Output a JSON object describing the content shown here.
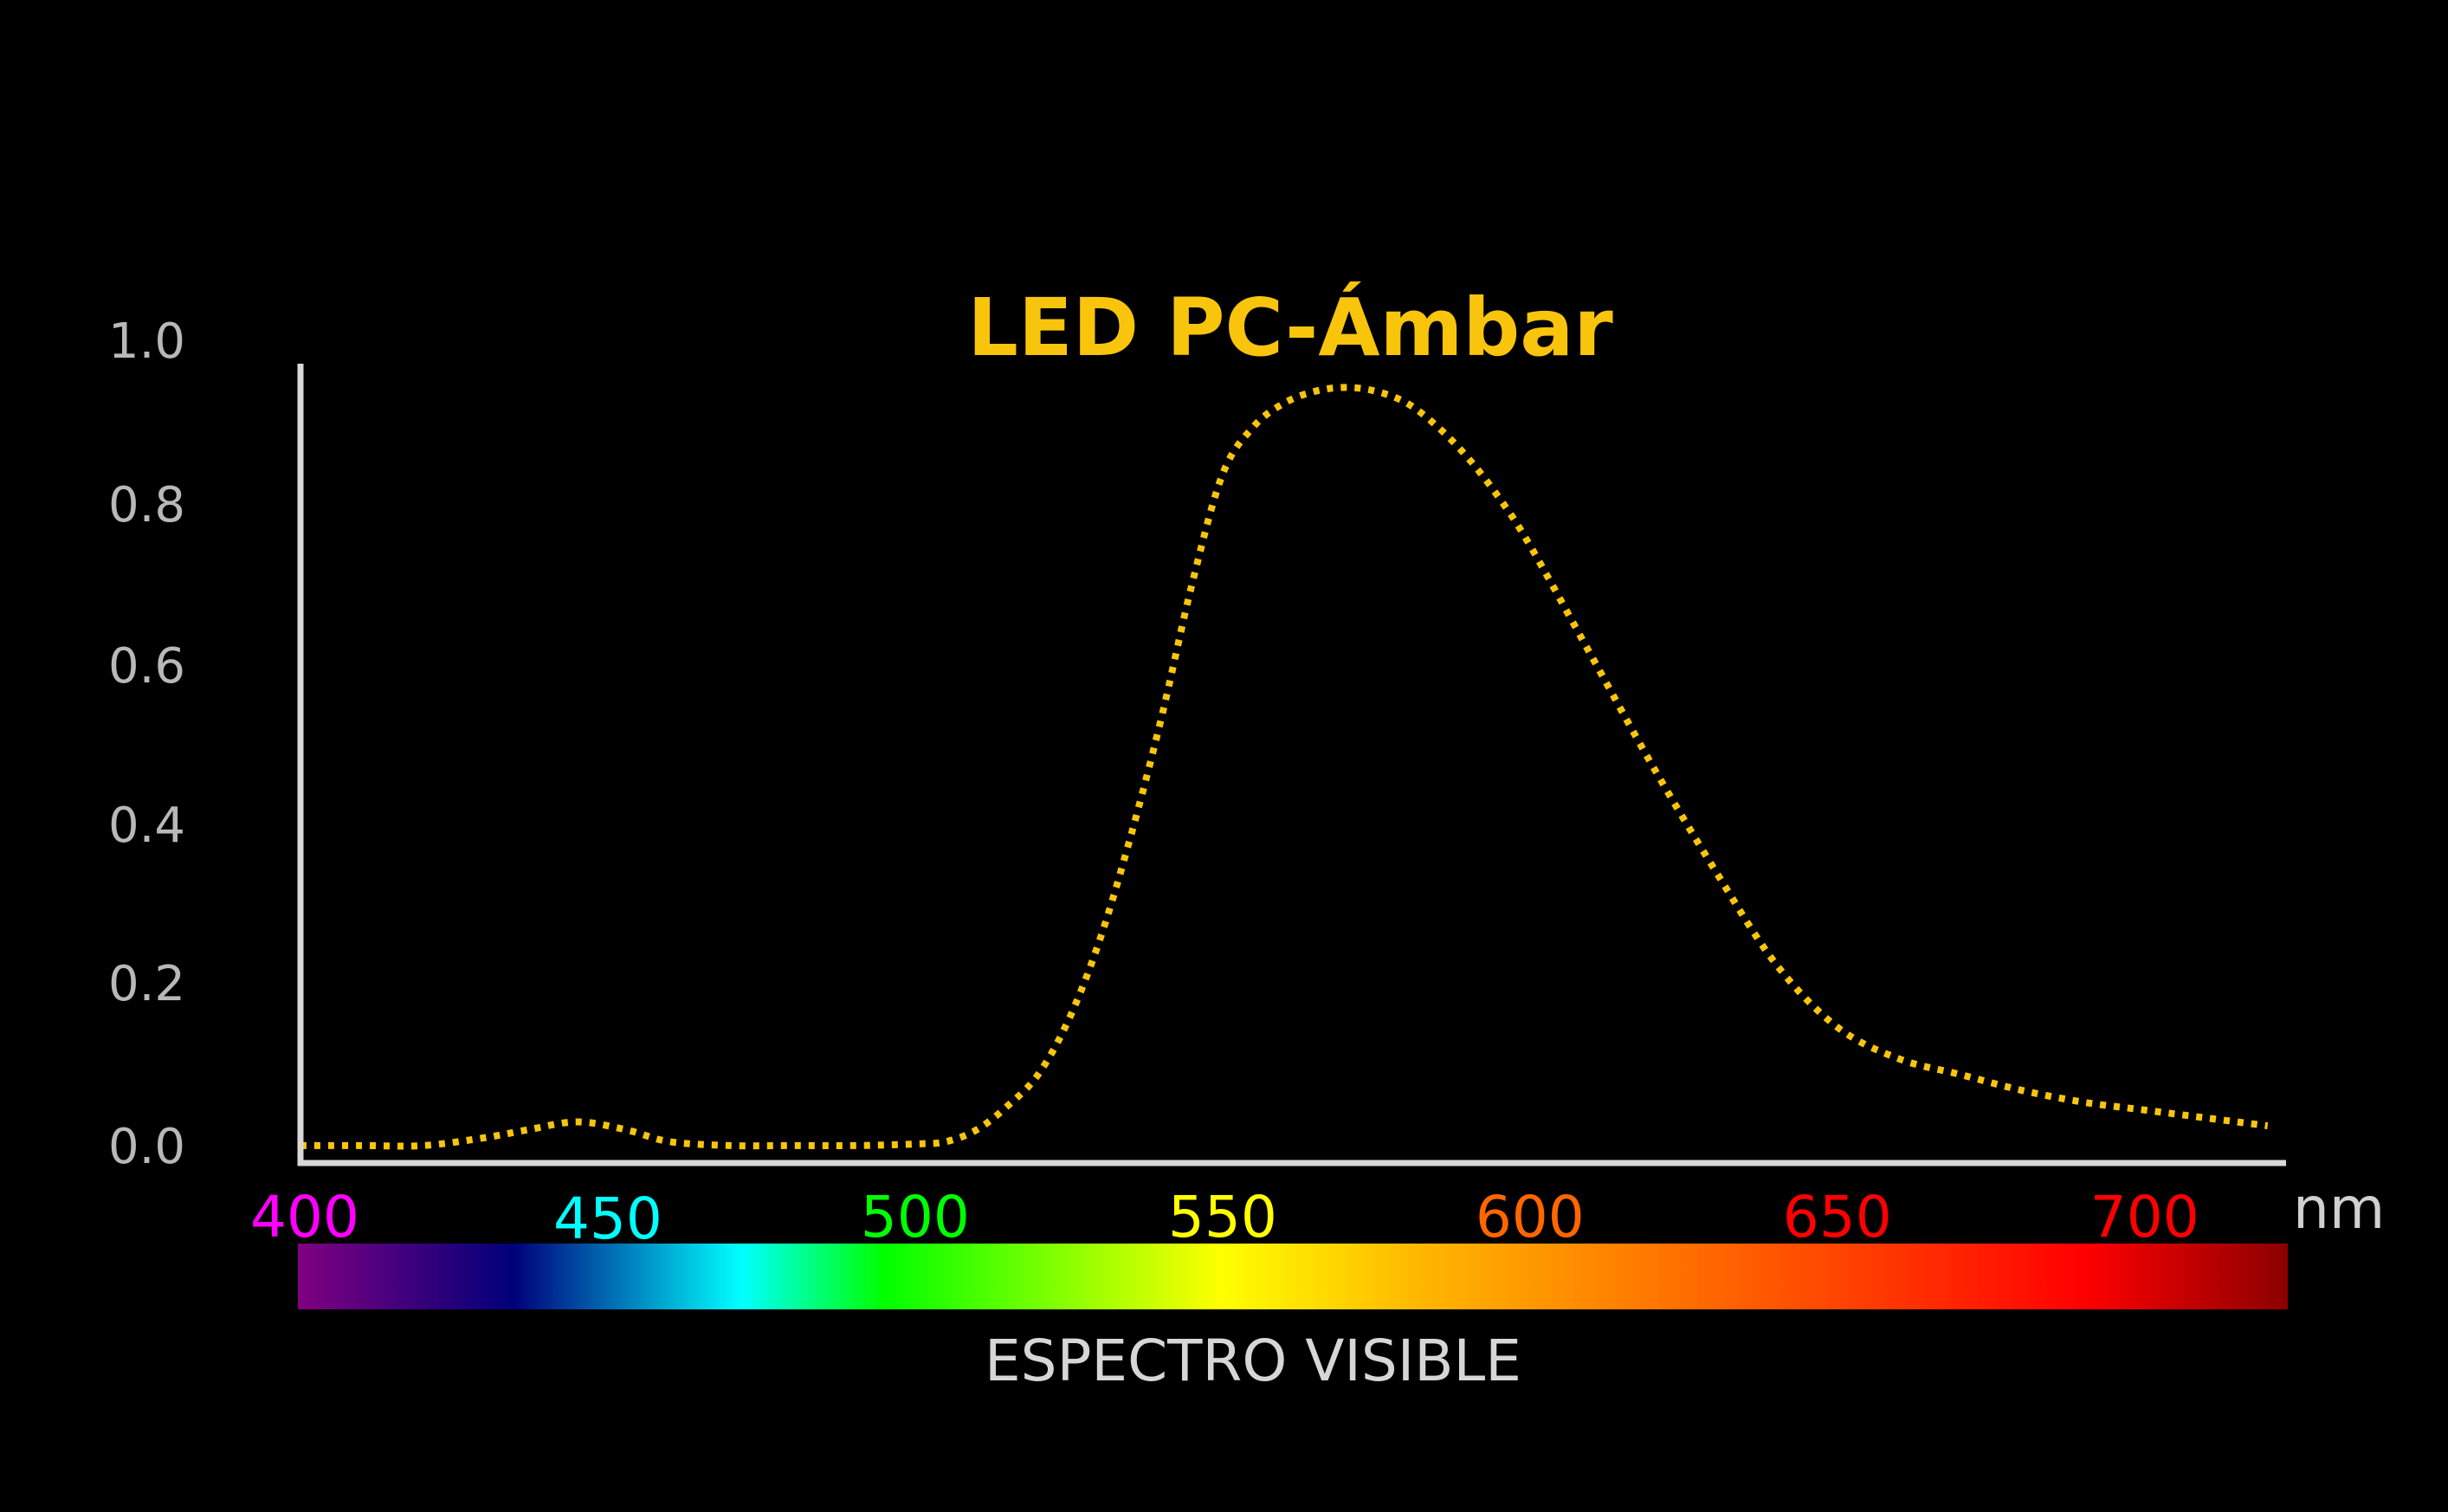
{
  "chart_data": {
    "type": "line",
    "title": "LED PC-Ámbar",
    "x_unit": "nm",
    "xlim": [
      400,
      723
    ],
    "ylim": [
      0,
      1.0
    ],
    "y_ticks": [
      "0.0",
      "0.2",
      "0.4",
      "0.6",
      "0.8",
      "1.0"
    ],
    "x_ticks": [
      {
        "label": "400",
        "value": 400,
        "color": "#ff00ff"
      },
      {
        "label": "450",
        "value": 450,
        "color": "#00ffff"
      },
      {
        "label": "500",
        "value": 500,
        "color": "#00ff00"
      },
      {
        "label": "550",
        "value": 550,
        "color": "#ffff00"
      },
      {
        "label": "600",
        "value": 600,
        "color": "#ff6600"
      },
      {
        "label": "650",
        "value": 650,
        "color": "#ff0000"
      },
      {
        "label": "700",
        "value": 700,
        "color": "#ff0000"
      }
    ],
    "series": [
      {
        "color": "#f8c50c",
        "style": "dotted",
        "x": [
          400,
          410,
          420,
          430,
          437,
          445,
          453,
          460,
          470,
          480,
          490,
          500,
          505,
          510,
          515,
          520,
          525,
          530,
          535,
          540,
          545,
          550,
          555,
          560,
          565,
          570,
          575,
          580,
          585,
          590,
          595,
          600,
          610,
          620,
          630,
          640,
          650,
          660,
          670,
          680,
          690,
          700,
          710,
          720
        ],
        "y": [
          0.01,
          0.01,
          0.01,
          0.02,
          0.03,
          0.04,
          0.03,
          0.015,
          0.01,
          0.01,
          0.01,
          0.012,
          0.015,
          0.03,
          0.06,
          0.1,
          0.17,
          0.27,
          0.4,
          0.55,
          0.72,
          0.86,
          0.92,
          0.95,
          0.965,
          0.97,
          0.965,
          0.95,
          0.92,
          0.88,
          0.83,
          0.77,
          0.63,
          0.49,
          0.36,
          0.24,
          0.16,
          0.12,
          0.1,
          0.08,
          0.065,
          0.055,
          0.045,
          0.035
        ]
      }
    ],
    "spectrum_bar": {
      "label": "ESPECTRO VISIBLE",
      "stops": [
        {
          "wl": 400,
          "color": "#800080"
        },
        {
          "wl": 435,
          "color": "#00007a"
        },
        {
          "wl": 472,
          "color": "#00ffff"
        },
        {
          "wl": 495,
          "color": "#00ff00"
        },
        {
          "wl": 550,
          "color": "#ffff00"
        },
        {
          "wl": 580,
          "color": "#ffbb00"
        },
        {
          "wl": 610,
          "color": "#ff8800"
        },
        {
          "wl": 650,
          "color": "#ff4400"
        },
        {
          "wl": 690,
          "color": "#ff0000"
        },
        {
          "wl": 723,
          "color": "#8b0000"
        }
      ]
    }
  }
}
